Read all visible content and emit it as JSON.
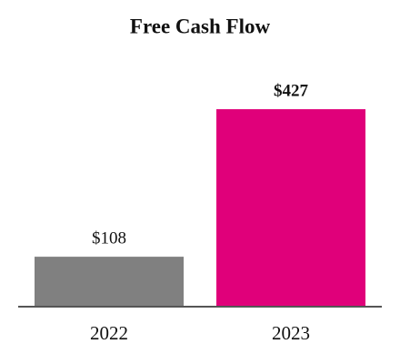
{
  "chart_data": {
    "type": "bar",
    "title": "Free Cash Flow",
    "categories": [
      "2022",
      "2023"
    ],
    "values": [
      108,
      427
    ],
    "value_labels": [
      "$108",
      "$427"
    ],
    "colors": [
      "#808080",
      "#e0007a"
    ]
  }
}
